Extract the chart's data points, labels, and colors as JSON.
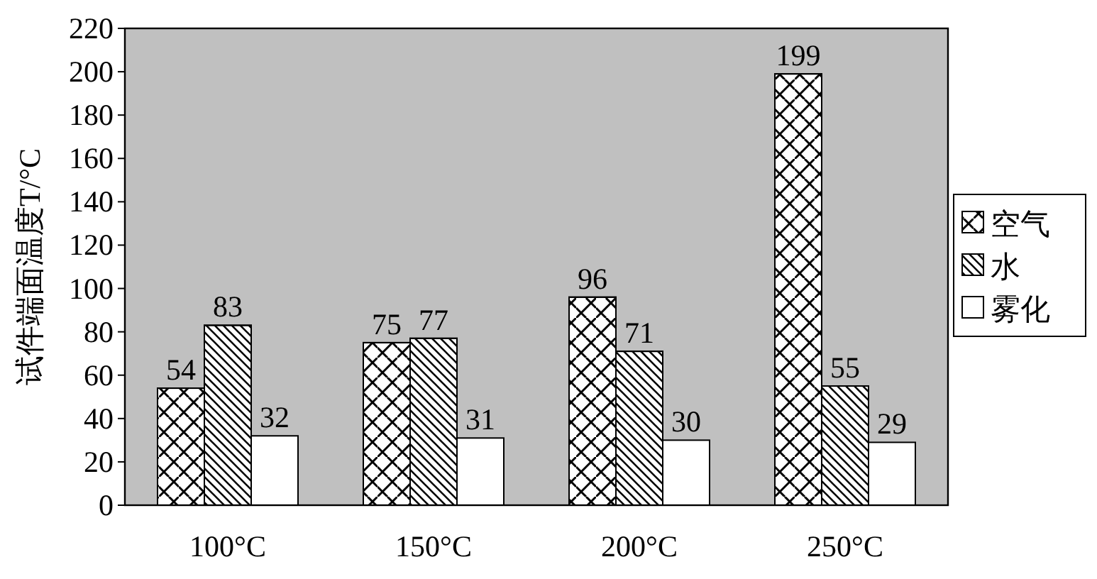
{
  "chart_data": {
    "type": "bar",
    "ylabel": "试件端面温度T/°C",
    "categories": [
      "100°C",
      "150°C",
      "200°C",
      "250°C"
    ],
    "series": [
      {
        "name": "空气",
        "color": "#ffffff",
        "values": [
          54,
          75,
          96,
          199
        ]
      },
      {
        "name": "水",
        "color": "#ffffff",
        "values": [
          83,
          77,
          71,
          55
        ]
      },
      {
        "name": "雾化",
        "color": "#ffffff",
        "values": [
          32,
          31,
          30,
          29
        ]
      }
    ],
    "ylim": [
      0,
      220
    ],
    "yticks": [
      0,
      20,
      40,
      60,
      80,
      100,
      120,
      140,
      160,
      180,
      200,
      220
    ],
    "data_labels": true,
    "legend": "right"
  }
}
